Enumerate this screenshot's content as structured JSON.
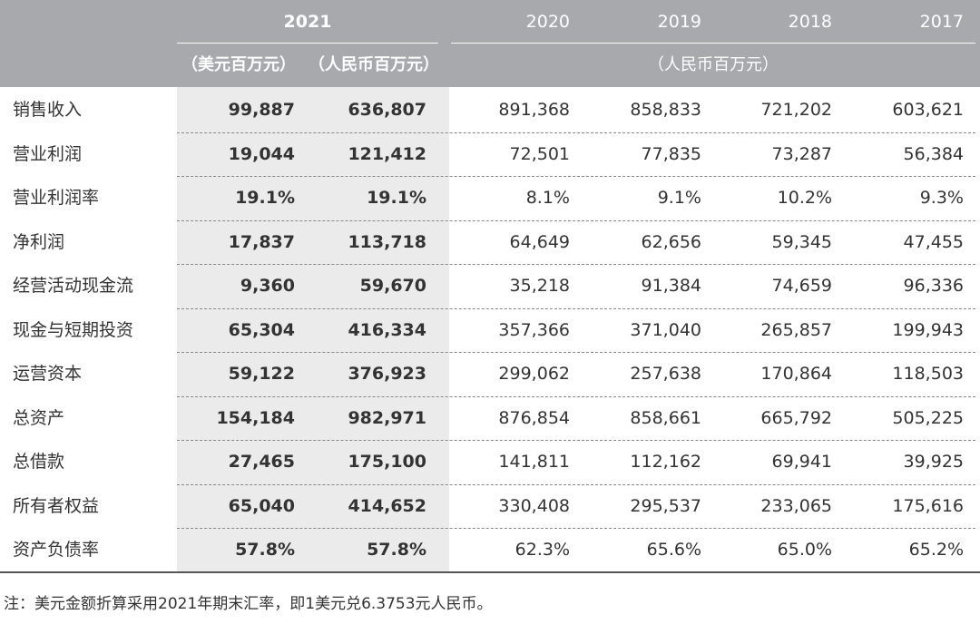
{
  "table": {
    "header": {
      "years": [
        "2021",
        "2020",
        "2019",
        "2018",
        "2017"
      ],
      "units": [
        "（美元百万元）",
        "（人民币百万元）",
        "（人民币百万元）"
      ]
    },
    "rows": [
      [
        "销售收入",
        "99,887",
        "636,807",
        "891,368",
        "858,833",
        "721,202",
        "603,621"
      ],
      [
        "营业利润",
        "19,044",
        "121,412",
        "72,501",
        "77,835",
        "73,287",
        "56,384"
      ],
      [
        "营业利润率",
        "19.1%",
        "19.1%",
        "8.1%",
        "9.1%",
        "10.2%",
        "9.3%"
      ],
      [
        "净利润",
        "17,837",
        "113,718",
        "64,649",
        "62,656",
        "59,345",
        "47,455"
      ],
      [
        "经营活动现金流",
        "9,360",
        "59,670",
        "35,218",
        "91,384",
        "74,659",
        "96,336"
      ],
      [
        "现金与短期投资",
        "65,304",
        "416,334",
        "357,366",
        "371,040",
        "265,857",
        "199,943"
      ],
      [
        "运营资本",
        "59,122",
        "376,923",
        "299,062",
        "257,638",
        "170,864",
        "118,503"
      ],
      [
        "总资产",
        "154,184",
        "982,971",
        "876,854",
        "858,661",
        "665,792",
        "505,225"
      ],
      [
        "总借款",
        "27,465",
        "175,100",
        "141,811",
        "112,162",
        "69,941",
        "39,925"
      ],
      [
        "所有者权益",
        "65,040",
        "414,652",
        "330,408",
        "295,537",
        "233,065",
        "175,616"
      ],
      [
        "资产负债率",
        "57.8%",
        "57.8%",
        "62.3%",
        "65.6%",
        "65.0%",
        "65.2%"
      ]
    ]
  },
  "note": "注：美元金额折算采用2021年期末汇率，即1美元兑6.3753元人民币。"
}
